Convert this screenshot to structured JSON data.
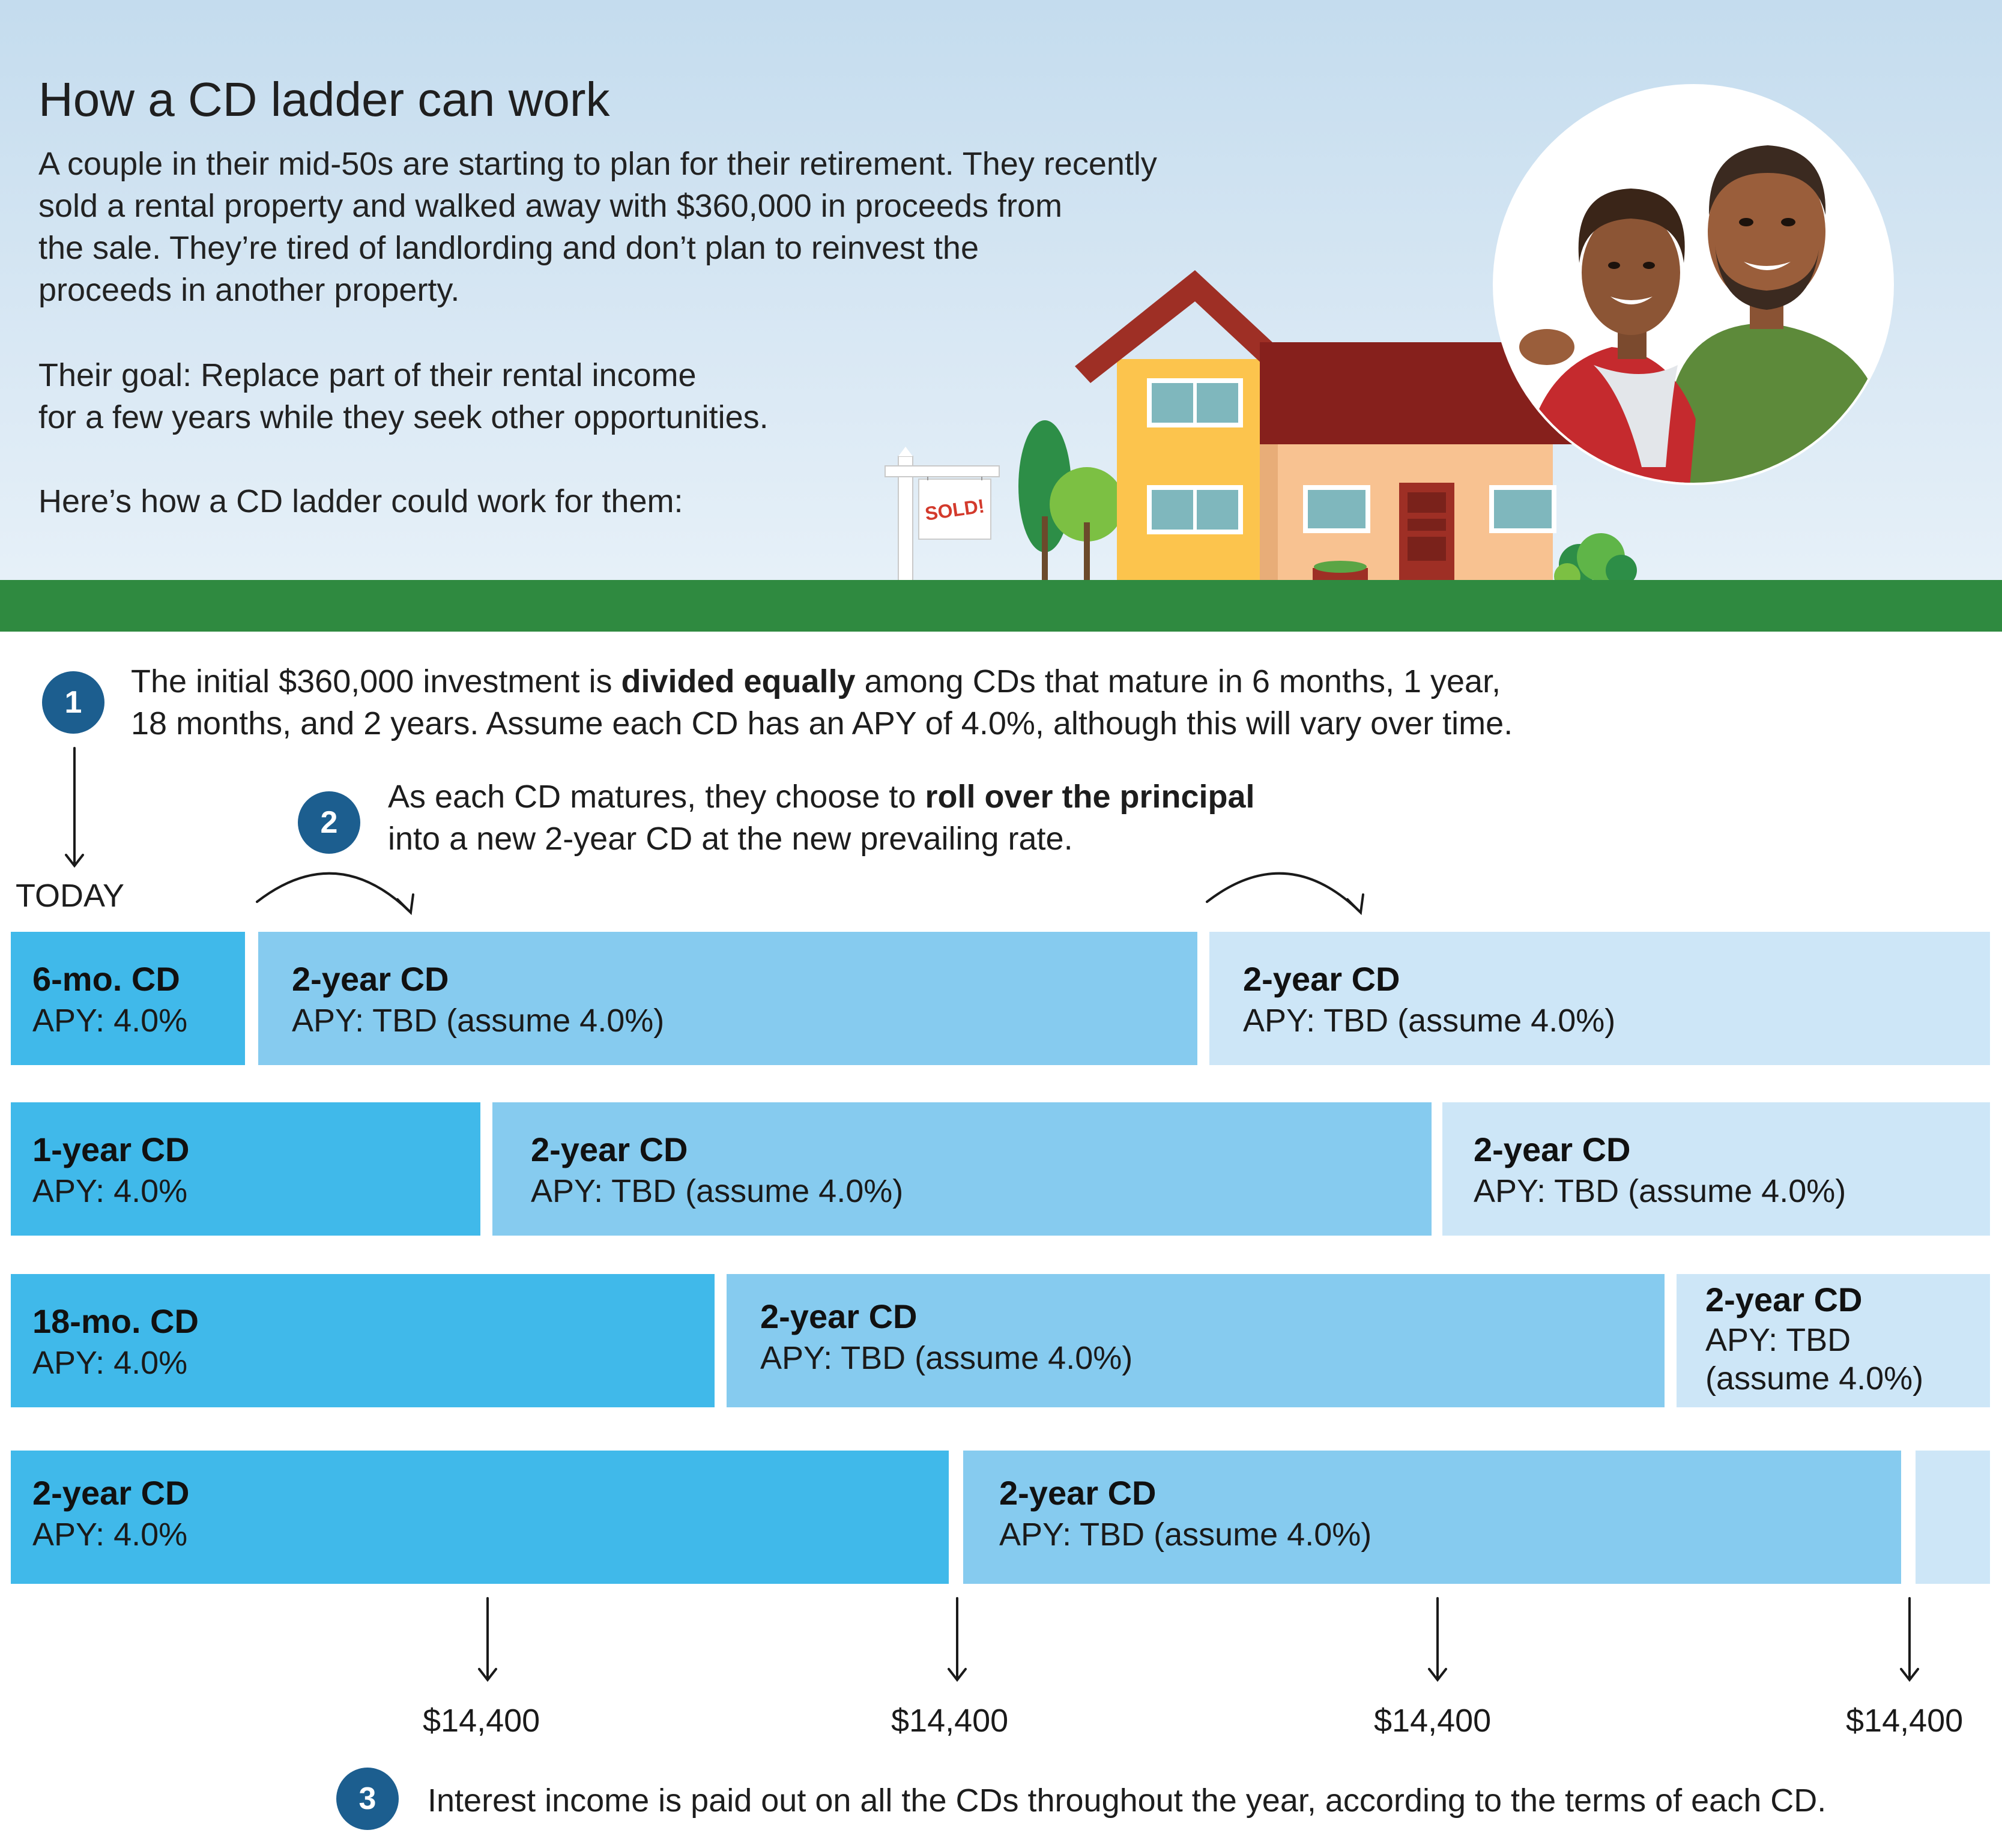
{
  "title": "How a CD ladder can work",
  "intro": [
    "A couple in their mid-50s are starting to plan for their retirement. They recently",
    "sold a rental property and walked away with $360,000 in proceeds from",
    "the sale. They’re tired of landlording and don’t plan to reinvest the",
    "proceeds in another property."
  ],
  "goal": [
    "Their goal: Replace part of their rental income",
    "for a few years while they seek other opportunities."
  ],
  "how_line": "Here’s how a CD ladder could work for them:",
  "sign_text": "SOLD!",
  "step1": {
    "number": "1",
    "line1_pre": "The initial $360,000 investment is ",
    "line1_bold": "divided equally",
    "line1_post": " among CDs that mature in 6 months, 1 year,",
    "line2": "18 months, and 2 years. Assume each CD has an APY of 4.0%, although this will vary over time."
  },
  "step2": {
    "number": "2",
    "line1_pre": "As each CD matures, they choose to ",
    "line1_bold": "roll over the principal",
    "line2": "into a new 2-year CD at the new prevailing rate."
  },
  "step3": {
    "number": "3",
    "text": "Interest income is paid out on all the CDs throughout the year, according to the terms of each CD."
  },
  "today_label": "TODAY",
  "rows": [
    [
      {
        "title": "6-mo. CD",
        "subtitle": "APY: 4.0%"
      },
      {
        "title": "2-year CD",
        "subtitle": "APY: TBD (assume 4.0%)"
      },
      {
        "title": "2-year CD",
        "subtitle": "APY: TBD (assume 4.0%)"
      }
    ],
    [
      {
        "title": "1-year CD",
        "subtitle": "APY: 4.0%"
      },
      {
        "title": "2-year CD",
        "subtitle": "APY: TBD (assume 4.0%)"
      },
      {
        "title": "2-year CD",
        "subtitle": "APY: TBD (assume 4.0%)"
      }
    ],
    [
      {
        "title": "18-mo. CD",
        "subtitle": "APY: 4.0%"
      },
      {
        "title": "2-year CD",
        "subtitle": "APY: TBD (assume 4.0%)"
      },
      {
        "title": "2-year CD",
        "subtitle": "APY: TBD",
        "subtitle2": "(assume 4.0%)"
      }
    ],
    [
      {
        "title": "2-year CD",
        "subtitle": "APY: 4.0%"
      },
      {
        "title": "2-year CD",
        "subtitle": "APY: TBD (assume 4.0%)"
      }
    ]
  ],
  "payouts": [
    "$14,400",
    "$14,400",
    "$14,400",
    "$14,400"
  ],
  "colors": {
    "sky": "#c4dcee",
    "ground": "#2f8a40",
    "initial_cd": "#40b9ea",
    "rollover_cd": "#86cbef",
    "second_rollover_cd": "#cde6f7",
    "step_badge": "#1c5e8f"
  }
}
